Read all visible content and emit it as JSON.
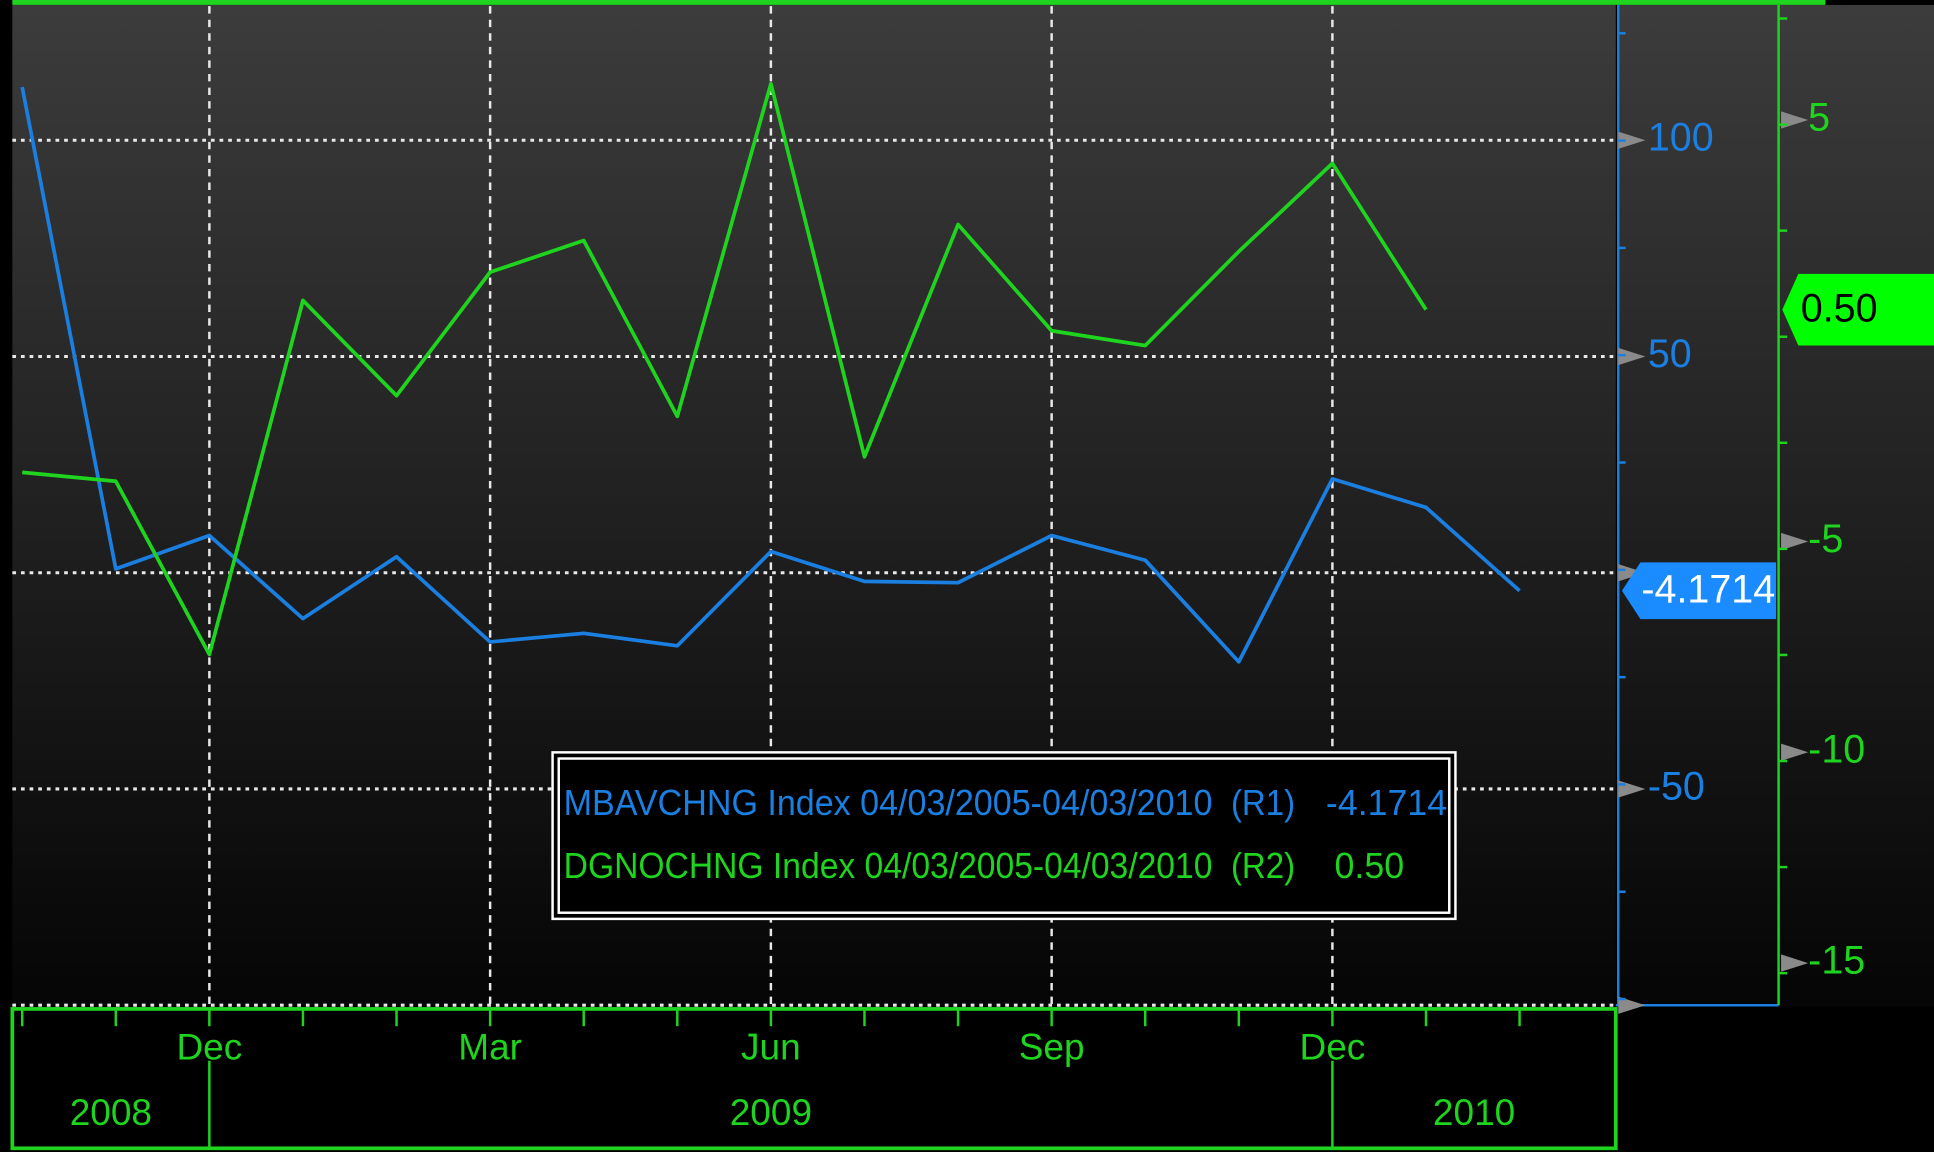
{
  "chart_data": {
    "type": "line",
    "categories": [
      null,
      null,
      "Dec",
      null,
      null,
      "Mar",
      null,
      null,
      "Jun",
      null,
      null,
      "Sep",
      null,
      null,
      "Dec",
      null,
      null
    ],
    "x_groups": [
      "2008",
      "2009",
      "2010"
    ],
    "series": [
      {
        "name": "MBAVCHNG Index 04/03/2005-04/03/2010",
        "axis_tag": "(R1)",
        "color": "#1a7fe0",
        "axis": "y",
        "values": [
          112.3,
          0.9,
          8.6,
          -10.6,
          3.7,
          -16,
          -14,
          -16.9,
          4.9,
          -2,
          -2.3,
          8.6,
          2.9,
          -20.6,
          21.7,
          15.1,
          -4.1714
        ],
        "value_labels": [
          null,
          null,
          null,
          null,
          null,
          null,
          null,
          null,
          null,
          null,
          null,
          null,
          null,
          null,
          null,
          null,
          "-4.1714"
        ]
      },
      {
        "name": "DGNOCHNG Index 04/03/2005-04/03/2010",
        "axis_tag": "(R2)",
        "color": "#1ed41e",
        "axis": "y2",
        "values": [
          -3.36,
          -3.57,
          -7.68,
          0.72,
          -1.54,
          1.39,
          2.14,
          -2.03,
          5.86,
          -2.99,
          2.52,
          0,
          -0.35,
          1.88,
          3.97,
          0.5,
          null
        ],
        "value_labels": [
          null,
          null,
          null,
          null,
          null,
          null,
          null,
          null,
          null,
          null,
          null,
          null,
          null,
          null,
          null,
          "0.50",
          null
        ]
      }
    ],
    "ylim": [
      -100,
      131
    ],
    "yticks": [
      -50,
      50,
      100
    ],
    "y_grid": [
      -100,
      -50,
      0,
      50,
      100
    ],
    "y2lim": [
      -16,
      7.7
    ],
    "y2ticks": [
      -15,
      -10,
      -5,
      5
    ],
    "grid": true
  }
}
